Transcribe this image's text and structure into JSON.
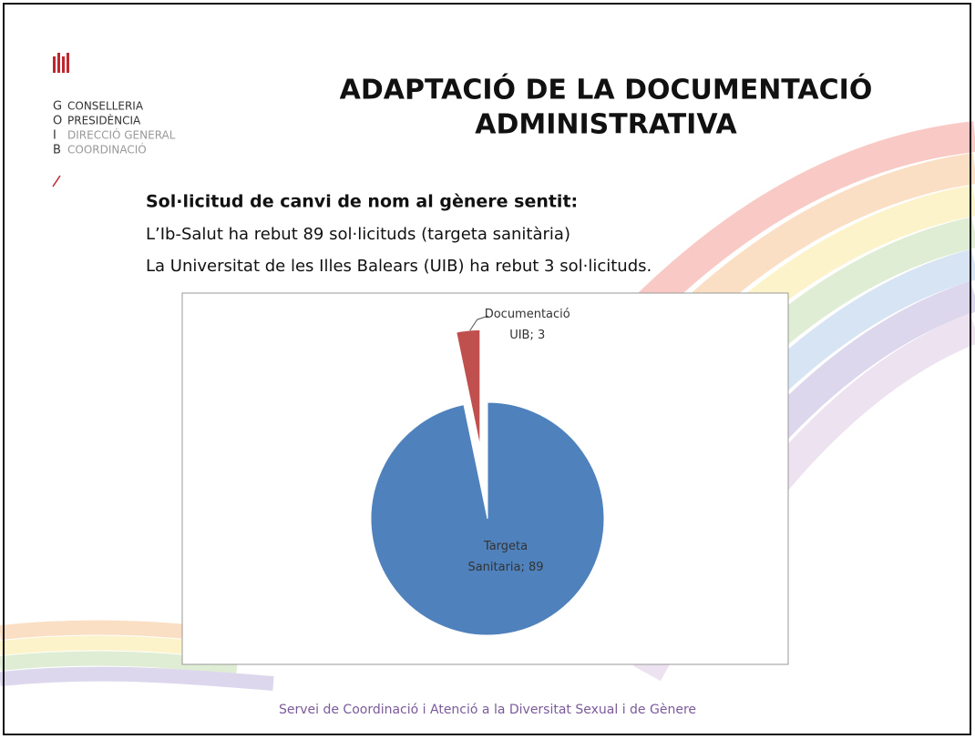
{
  "logo": {
    "letters": [
      "G",
      "O",
      "I",
      "B"
    ],
    "lines": [
      "CONSELLERIA",
      "PRESIDÈNCIA",
      "DIRECCIÓ GENERAL",
      "COORDINACIÓ"
    ]
  },
  "title": [
    "ADAPTACIÓ DE LA DOCUMENTACIÓ",
    "ADMINISTRATIVA"
  ],
  "body": {
    "heading": "Sol·licitud de canvi de nom al gènere sentit:",
    "lines": [
      "L’Ib-Salut ha rebut 89 sol·licituds (targeta sanitària)",
      "La Universitat de les Illes Balears (UIB) ha rebut  3 sol·licituds."
    ]
  },
  "chart_data": {
    "type": "pie",
    "labels": [
      "Targeta Sanitaria; 89",
      "Documentació UIB; 3"
    ],
    "values": [
      89,
      3
    ],
    "colors": [
      "#4f81bd",
      "#c0504d"
    ],
    "exploded": [
      false,
      true
    ]
  },
  "footer": "Servei de Coordinació i Atenció a la Diversitat Sexual i de Gènere"
}
